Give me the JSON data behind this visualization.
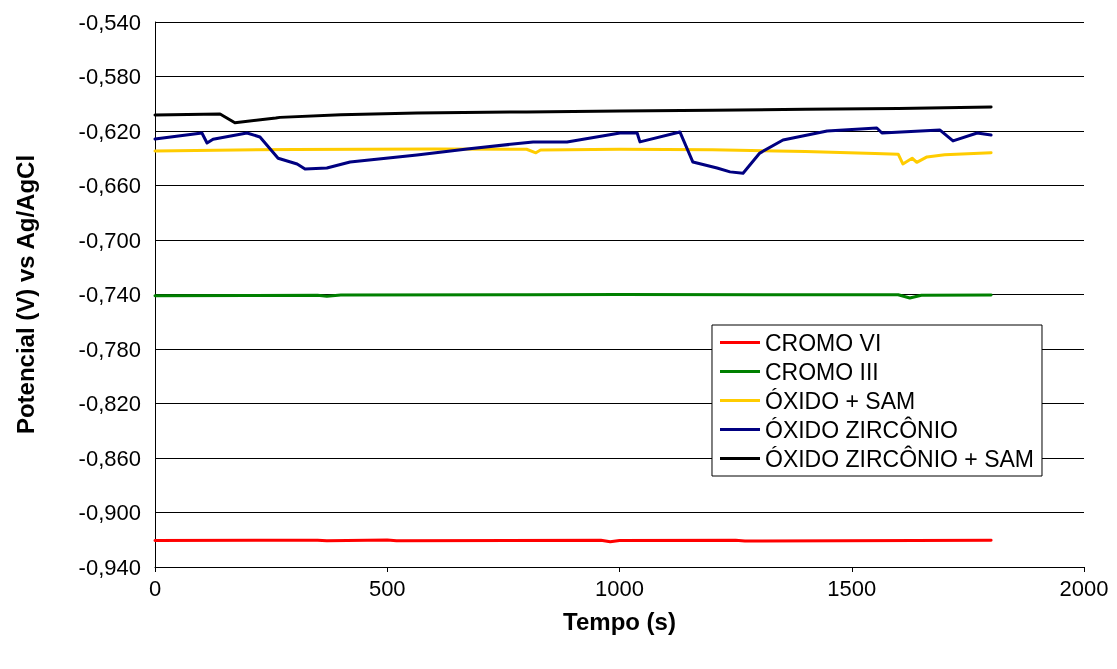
{
  "chart_data": {
    "type": "line",
    "xlabel": "Tempo (s)",
    "ylabel": "Potencial (V) vs Ag/AgCl",
    "xlim": [
      0,
      2000
    ],
    "xticks": [
      0,
      500,
      1000,
      1500,
      2000
    ],
    "ylim": [
      -0.94,
      -0.54
    ],
    "yticks": [
      {
        "value": -0.94,
        "label": "-0,940"
      },
      {
        "value": -0.9,
        "label": "-0,900"
      },
      {
        "value": -0.86,
        "label": "-0,860"
      },
      {
        "value": -0.82,
        "label": "-0,820"
      },
      {
        "value": -0.78,
        "label": "-0,780"
      },
      {
        "value": -0.74,
        "label": "-0,740"
      },
      {
        "value": -0.7,
        "label": "-0,700"
      },
      {
        "value": -0.66,
        "label": "-0,660"
      },
      {
        "value": -0.62,
        "label": "-0,620"
      },
      {
        "value": -0.58,
        "label": "-0,580"
      },
      {
        "value": -0.54,
        "label": "-0,540"
      }
    ],
    "grid": "y",
    "legend": "right",
    "marker": "none",
    "line_style": "solid",
    "series": [
      {
        "name": "CROMO VI",
        "color": "#ff0000",
        "x": [
          0,
          350,
          370,
          500,
          520,
          960,
          980,
          1000,
          1250,
          1270,
          1800
        ],
        "values": [
          -0.9205,
          -0.9203,
          -0.9208,
          -0.9202,
          -0.9207,
          -0.9204,
          -0.9215,
          -0.9206,
          -0.9204,
          -0.921,
          -0.9204
        ]
      },
      {
        "name": "CROMO III",
        "color": "#008000",
        "x": [
          0,
          200,
          350,
          370,
          400,
          800,
          1000,
          1600,
          1625,
          1650,
          1800
        ],
        "values": [
          -0.741,
          -0.7408,
          -0.7405,
          -0.7412,
          -0.7404,
          -0.7402,
          -0.74,
          -0.7402,
          -0.7426,
          -0.7405,
          -0.7403
        ]
      },
      {
        "name": "ÓXIDO + SAM",
        "color": "#ffcc00",
        "x": [
          0,
          300,
          600,
          800,
          820,
          830,
          1000,
          1200,
          1400,
          1550,
          1600,
          1610,
          1630,
          1640,
          1662,
          1700,
          1800
        ],
        "values": [
          -0.6347,
          -0.6335,
          -0.6332,
          -0.6334,
          -0.636,
          -0.634,
          -0.6334,
          -0.6338,
          -0.635,
          -0.6365,
          -0.637,
          -0.6442,
          -0.64,
          -0.643,
          -0.639,
          -0.6375,
          -0.636
        ]
      },
      {
        "name": "ÓXIDO ZIRCÔNIO",
        "color": "#000080",
        "x": [
          0,
          101,
          112,
          125,
          198,
          226,
          265,
          306,
          323,
          370,
          420,
          564,
          672,
          814,
          887,
          1001,
          1038,
          1044,
          1130,
          1158,
          1210,
          1238,
          1266,
          1302,
          1352,
          1447,
          1554,
          1565,
          1690,
          1718,
          1770,
          1800
        ],
        "values": [
          -0.6259,
          -0.6215,
          -0.6288,
          -0.626,
          -0.6215,
          -0.6244,
          -0.64,
          -0.6442,
          -0.6479,
          -0.6472,
          -0.6428,
          -0.6376,
          -0.6332,
          -0.628,
          -0.628,
          -0.6215,
          -0.6215,
          -0.628,
          -0.6207,
          -0.6428,
          -0.6472,
          -0.65,
          -0.651,
          -0.6362,
          -0.6266,
          -0.62,
          -0.6178,
          -0.6215,
          -0.6193,
          -0.6273,
          -0.6215,
          -0.623
        ]
      },
      {
        "name": "ÓXIDO ZIRCÔNIO + SAM",
        "color": "#000000",
        "x": [
          0,
          140,
          172,
          260,
          269,
          400,
          564,
          800,
          1001,
          1200,
          1400,
          1600,
          1800
        ],
        "values": [
          -0.6083,
          -0.6075,
          -0.614,
          -0.6105,
          -0.61,
          -0.608,
          -0.6068,
          -0.606,
          -0.6053,
          -0.6048,
          -0.604,
          -0.6035,
          -0.6024
        ]
      }
    ]
  }
}
